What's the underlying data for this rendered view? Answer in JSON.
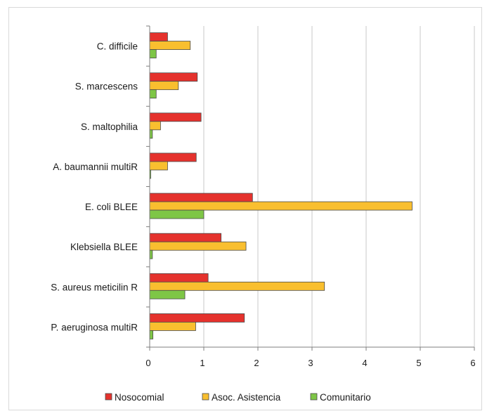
{
  "chart_data": {
    "type": "bar",
    "orientation": "horizontal",
    "title": "",
    "xlabel": "",
    "ylabel": "",
    "categories": [
      "C. difficile",
      "S. marcescens",
      "S. maltophilia",
      "A. baumannii  multiR",
      "E. coli BLEE",
      "Klebsiella BLEE",
      "S. aureus meticilin  R",
      "P. aeruginosa multiR"
    ],
    "series": [
      {
        "name": "Nosocomial",
        "color": "#e5322d",
        "values": [
          0.33,
          0.88,
          0.95,
          0.86,
          1.9,
          1.32,
          1.08,
          1.75
        ]
      },
      {
        "name": "Asoc. Asistencia",
        "color": "#f9bf2f",
        "values": [
          0.75,
          0.53,
          0.2,
          0.33,
          4.85,
          1.78,
          3.23,
          0.85
        ]
      },
      {
        "name": "Comunitario",
        "color": "#7ec646",
        "values": [
          0.12,
          0.12,
          0.05,
          0.02,
          1.0,
          0.05,
          0.65,
          0.06
        ]
      }
    ],
    "xlim": [
      0,
      6
    ],
    "xticks": [
      "0",
      "1",
      "2",
      "3",
      "4",
      "5",
      "6"
    ],
    "grid": true,
    "legend": "bottom"
  }
}
